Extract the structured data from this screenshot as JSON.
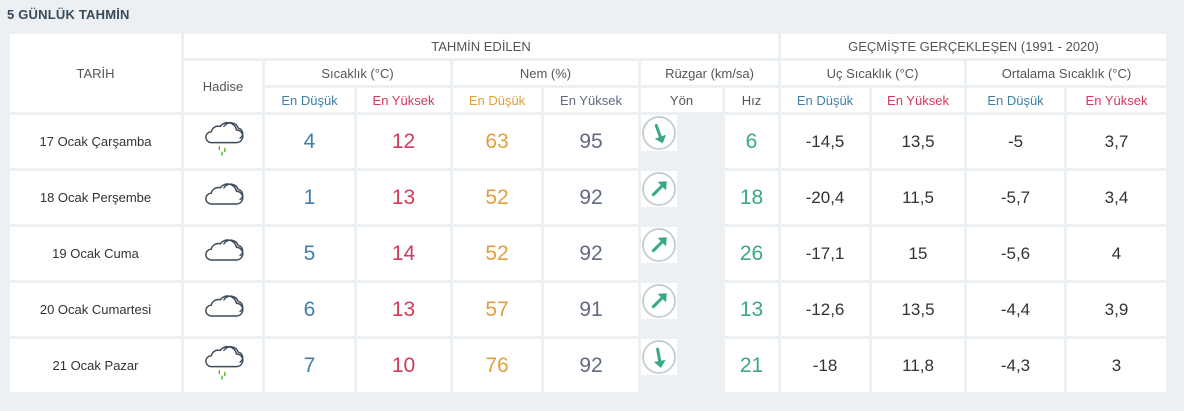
{
  "title": "5 GÜNLÜK TAHMİN",
  "headers": {
    "tarih": "TARİH",
    "tahmin_edilen": "TAHMİN EDİLEN",
    "gecmiste": "GEÇMİŞTE GERÇEKLEŞEN (1991 - 2020)",
    "hadise": "Hadise",
    "sicaklik": "Sıcaklık (°C)",
    "nem": "Nem (%)",
    "ruzgar": "Rüzgar (km/sa)",
    "uc_sicaklik": "Uç Sıcaklık (°C)",
    "ortalama_sicaklik": "Ortalama Sıcaklık (°C)",
    "en_dusuk": "En Düşük",
    "en_yuksek": "En Yüksek",
    "yon": "Yön",
    "hiz": "Hız"
  },
  "colors": {
    "blue": "#3f7fa8",
    "red": "#d03a5b",
    "orange": "#e0a13b",
    "gray": "#5f6b80",
    "teal": "#3aa886"
  },
  "rows": [
    {
      "date": "17 Ocak Çarşamba",
      "icon": "rain-cloud-icon",
      "temp_min": "4",
      "temp_max": "12",
      "hum_min": "63",
      "hum_max": "95",
      "wind_dir": "arrow-south-icon",
      "wind_dir_deg": 160,
      "wind_speed": "6",
      "ext_min": "-14,5",
      "ext_max": "13,5",
      "avg_min": "-5",
      "avg_max": "3,7"
    },
    {
      "date": "18 Ocak Perşembe",
      "icon": "cloud-icon",
      "temp_min": "1",
      "temp_max": "13",
      "hum_min": "52",
      "hum_max": "92",
      "wind_dir": "arrow-northeast-icon",
      "wind_dir_deg": 45,
      "wind_speed": "18",
      "ext_min": "-20,4",
      "ext_max": "11,5",
      "avg_min": "-5,7",
      "avg_max": "3,4"
    },
    {
      "date": "19 Ocak Cuma",
      "icon": "cloud-icon",
      "temp_min": "5",
      "temp_max": "14",
      "hum_min": "52",
      "hum_max": "92",
      "wind_dir": "arrow-northeast-icon",
      "wind_dir_deg": 45,
      "wind_speed": "26",
      "ext_min": "-17,1",
      "ext_max": "15",
      "avg_min": "-5,6",
      "avg_max": "4"
    },
    {
      "date": "20 Ocak Cumartesi",
      "icon": "cloud-icon",
      "temp_min": "6",
      "temp_max": "13",
      "hum_min": "57",
      "hum_max": "91",
      "wind_dir": "arrow-northeast-icon",
      "wind_dir_deg": 45,
      "wind_speed": "13",
      "ext_min": "-12,6",
      "ext_max": "13,5",
      "avg_min": "-4,4",
      "avg_max": "3,9"
    },
    {
      "date": "21 Ocak Pazar",
      "icon": "rain-cloud-icon",
      "temp_min": "7",
      "temp_max": "10",
      "hum_min": "76",
      "hum_max": "92",
      "wind_dir": "arrow-south-icon",
      "wind_dir_deg": 170,
      "wind_speed": "21",
      "ext_min": "-18",
      "ext_max": "11,8",
      "avg_min": "-4,3",
      "avg_max": "3"
    }
  ]
}
